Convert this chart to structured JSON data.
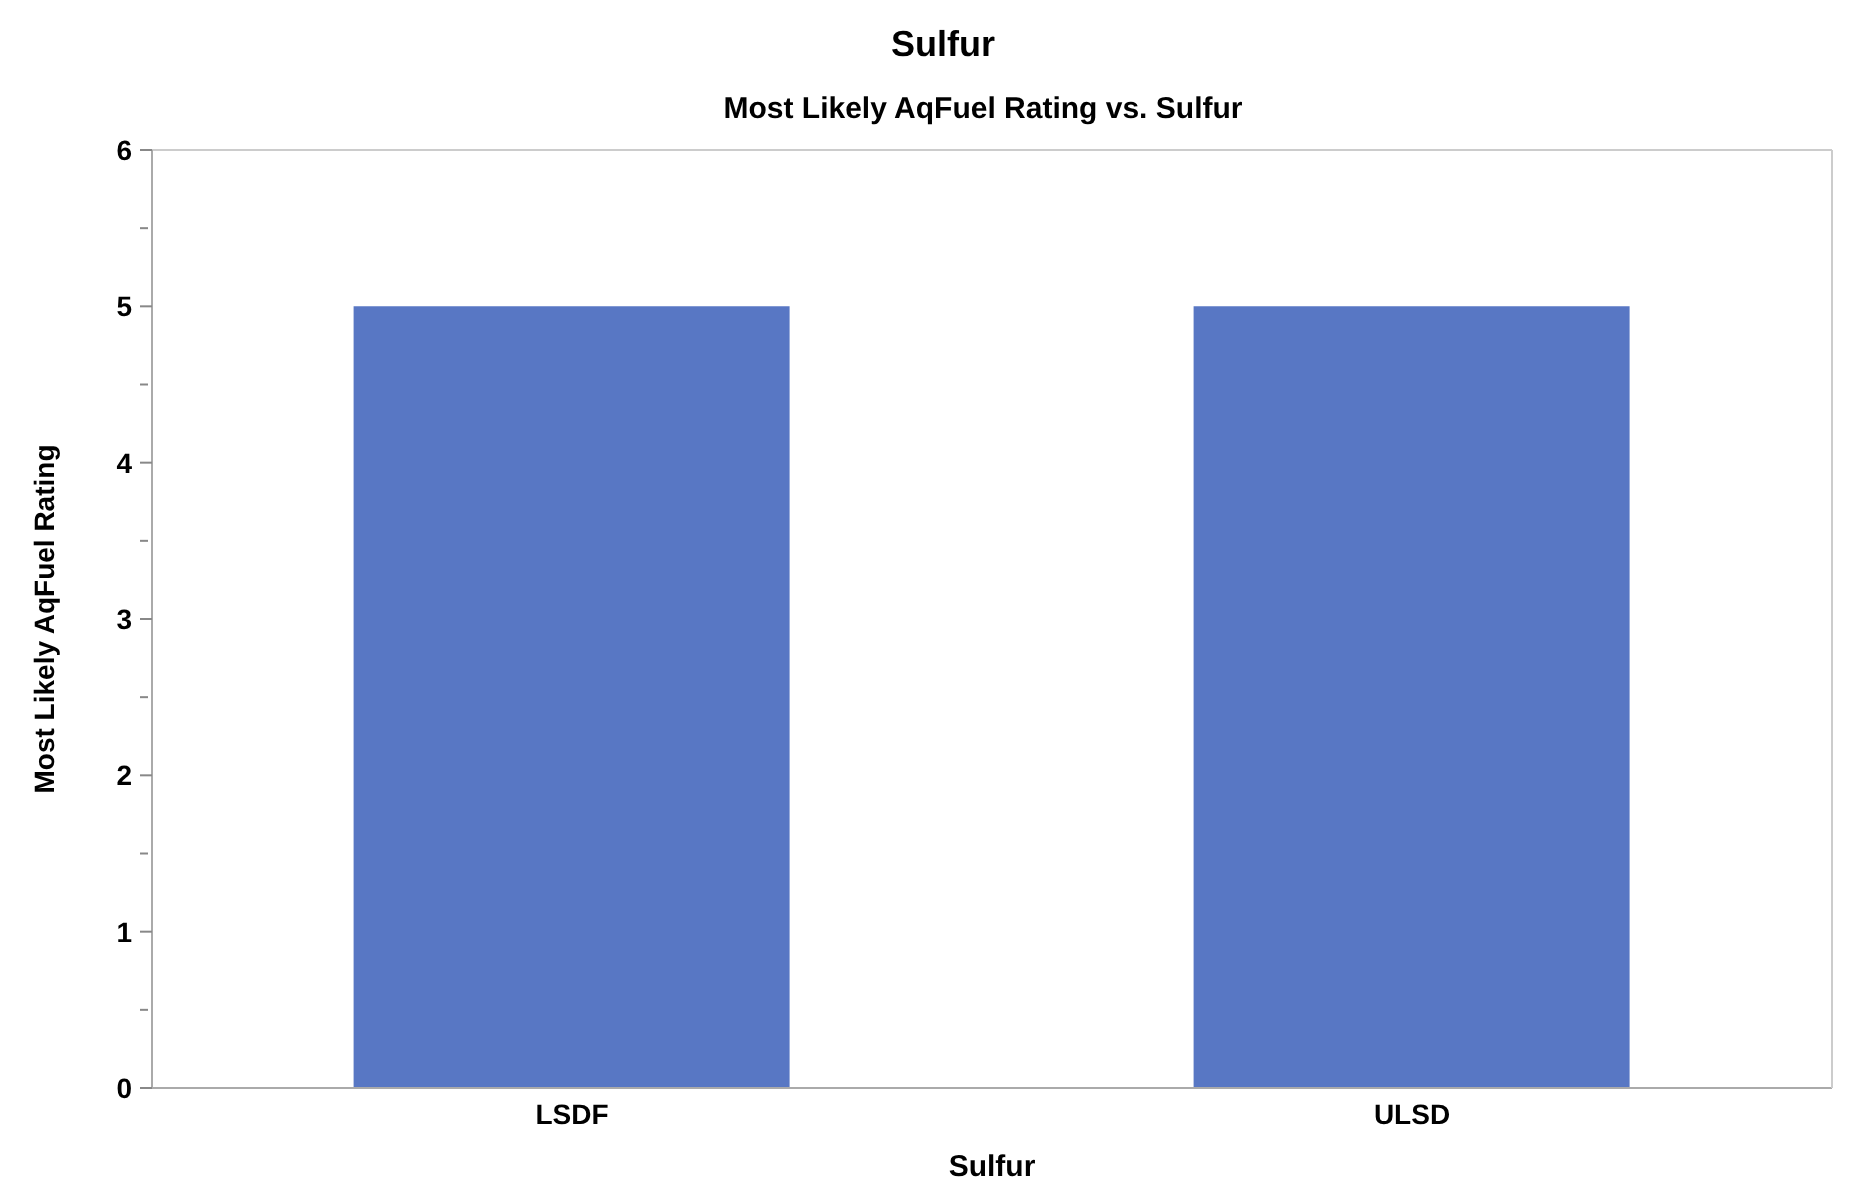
{
  "chart_data": {
    "type": "bar",
    "title": "Sulfur",
    "subtitle": "Most Likely AqFuel Rating vs. Sulfur",
    "xlabel": "Sulfur",
    "ylabel": "Most Likely AqFuel Rating",
    "categories": [
      "LSDF",
      "ULSD"
    ],
    "values": [
      5,
      5
    ],
    "color": "#5877c4",
    "ylim": [
      0,
      6
    ],
    "yticks": [
      0,
      {
        "value": 0.5,
        "label": null
      },
      1,
      {
        "value": 1.5,
        "label": null
      },
      2,
      {
        "value": 2.5,
        "label": null
      },
      3,
      {
        "value": 3.5,
        "label": null
      },
      4,
      {
        "value": 4.5,
        "label": null
      },
      5,
      {
        "value": 5.5,
        "label": null
      },
      6
    ],
    "grid": false
  }
}
